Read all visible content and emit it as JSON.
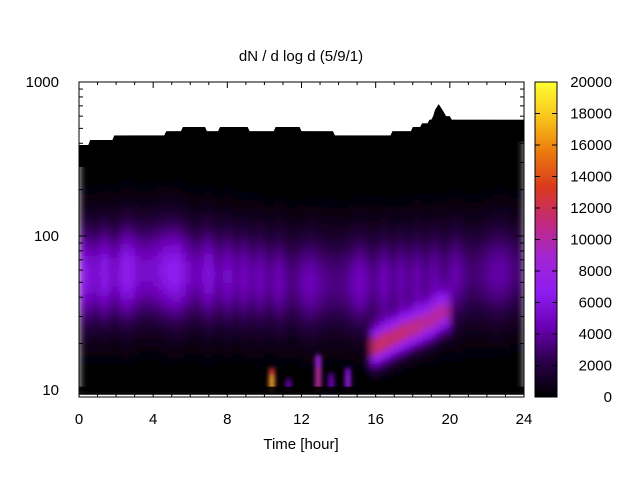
{
  "chart_data": {
    "type": "heatmap",
    "title": "dN / d log d (5/9/1)",
    "xlabel": "Time [hour]",
    "ylabel": "",
    "xlim": [
      0,
      24
    ],
    "ylim": [
      9,
      1000
    ],
    "y_scale": "log",
    "x_ticks": [
      0,
      4,
      8,
      12,
      16,
      20,
      24
    ],
    "x_tick_labels": [
      "0",
      "4",
      "8",
      "12",
      "16",
      "20",
      "24"
    ],
    "y_ticks": [
      10,
      100,
      1000
    ],
    "y_tick_labels": [
      "10",
      "100",
      "1000"
    ],
    "colorbar": {
      "range": [
        0,
        20000
      ],
      "ticks": [
        0,
        2000,
        4000,
        6000,
        8000,
        10000,
        12000,
        14000,
        16000,
        18000,
        20000
      ],
      "tick_labels": [
        "0",
        "2000",
        "4000",
        "6000",
        "8000",
        "10000",
        "12000",
        "14000",
        "16000",
        "18000",
        "20000"
      ],
      "colormap": [
        "#000000",
        "#2a0048",
        "#6a00b4",
        "#8e1cf0",
        "#a326d2",
        "#c22a7a",
        "#d93a1c",
        "#ec7a0e",
        "#f8c51a",
        "#ffff33"
      ]
    },
    "data_upper_edge_diameter": {
      "x_hours": [
        0,
        1.2,
        2.6,
        3.6,
        4.2,
        5.3,
        6.4,
        7.2,
        8.0,
        10.2,
        11.0,
        14.6,
        16.6,
        17.2,
        18.2,
        19.0,
        19.4,
        19.8,
        20.4,
        21.4,
        22.4,
        24
      ],
      "diameter": [
        390,
        420,
        450,
        460,
        450,
        490,
        510,
        480,
        510,
        480,
        510,
        450,
        450,
        480,
        500,
        570,
        720,
        600,
        560,
        570,
        560,
        560
      ]
    },
    "background_mode": {
      "note_x_hours": [
        0,
        4,
        8,
        12,
        16,
        20,
        24
      ],
      "peak_diameter": [
        55,
        60,
        55,
        50,
        50,
        55,
        60
      ],
      "level": [
        6000,
        6500,
        5000,
        4000,
        4500,
        4000,
        3500
      ]
    },
    "growing_mode": {
      "x_hours": [
        16.0,
        17.0,
        18.0,
        19.0,
        19.6
      ],
      "peak_diameter": [
        19,
        22,
        25,
        28,
        32
      ],
      "level": [
        11000,
        10500,
        9500,
        8500,
        8000
      ]
    },
    "bursts": [
      {
        "x_hour": 10.4,
        "diameter_range": [
          10,
          14
        ],
        "level": 18000
      },
      {
        "x_hour": 12.9,
        "diameter_range": [
          10,
          17
        ],
        "level": 12000
      },
      {
        "x_hour": 14.5,
        "diameter_range": [
          10,
          14
        ],
        "level": 8000
      },
      {
        "x_hour": 13.6,
        "diameter_range": [
          10,
          13
        ],
        "level": 5500
      },
      {
        "x_hour": 11.3,
        "diameter_range": [
          10,
          12
        ],
        "level": 5000
      }
    ]
  }
}
